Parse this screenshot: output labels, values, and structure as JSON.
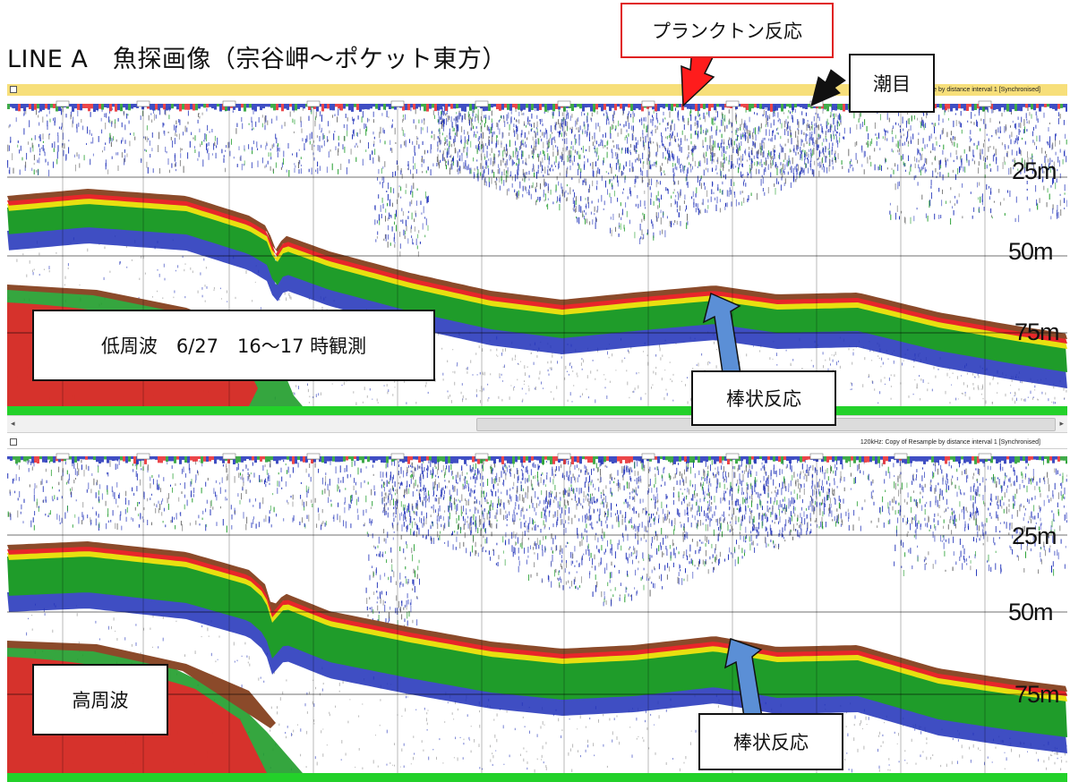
{
  "page_title": "LINE A　魚探画像（宗谷岬～ポケット東方）",
  "colors": {
    "seabed": "#8b4a2a",
    "red_echo": "#e8262a",
    "yellow_echo": "#e8e010",
    "green_echo": "#1f9c2a",
    "blue_echo": "#1d2fb8",
    "grid": "#000000",
    "titlebar": "#f7df7a",
    "bottom_strip": "#23d12a",
    "plankton_box_border": "#e02020",
    "arrow_red": "#ff1c1c",
    "arrow_blue": "#5b8fd6",
    "arrow_black": "#111111"
  },
  "top_panel": {
    "window_caption": "38kHz: Resample by distance interval 1 [Synchronised]",
    "depth_labels": [
      "25m",
      "50m",
      "75m"
    ],
    "mode_label": "低周波　6/27　16～17 時観測",
    "annotation_label": "棒状反応"
  },
  "bottom_panel": {
    "window_caption": "120kHz: Copy of Resample by distance interval 1 [Synchronised]",
    "depth_labels": [
      "25m",
      "50m",
      "75m"
    ],
    "mode_label": "高周波",
    "annotation_label": "棒状反応"
  },
  "callouts": {
    "plankton": "プランクトン反応",
    "tide": "潮目"
  },
  "icons": {
    "red_arrow": "red-arrow-icon",
    "black_arrow": "black-arrow-icon",
    "blue_arrow": "blue-arrow-icon",
    "scroll_left": "◂",
    "scroll_right": "▸"
  }
}
